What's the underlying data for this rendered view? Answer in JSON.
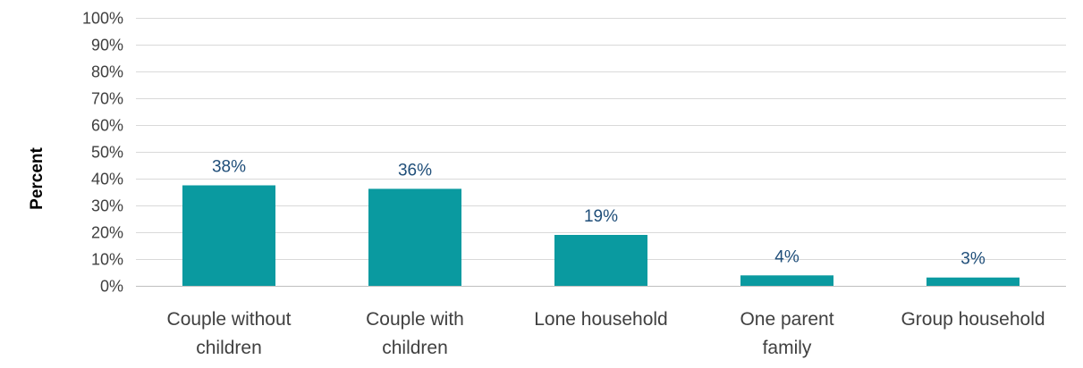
{
  "chart_data": {
    "type": "bar",
    "ylabel": "Percent",
    "categories": [
      [
        "Couple without",
        "children"
      ],
      [
        "Couple with",
        "children"
      ],
      [
        "Lone household"
      ],
      [
        "One parent",
        "family"
      ],
      [
        "Group household"
      ]
    ],
    "values": [
      37.5,
      36.2,
      19.0,
      3.9,
      3.1
    ],
    "data_labels": [
      "38%",
      "36%",
      "19%",
      "4%",
      "3%"
    ],
    "yticks": [
      "0%",
      "10%",
      "20%",
      "30%",
      "40%",
      "50%",
      "60%",
      "70%",
      "80%",
      "90%",
      "100%"
    ],
    "ylim": [
      0,
      100
    ],
    "grid": true,
    "bar_color": "#0a9aa0",
    "label_color": "#1f4e79"
  }
}
